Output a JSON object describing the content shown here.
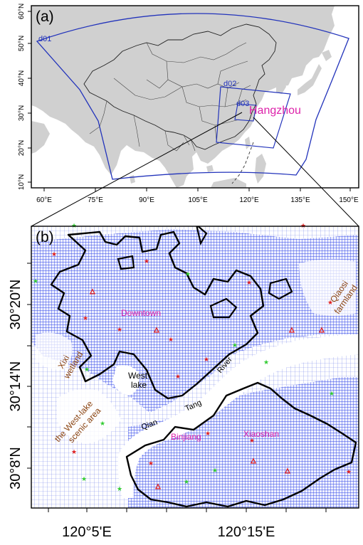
{
  "panel_a": {
    "label": "(a)",
    "domain_labels": [
      "d01",
      "d02",
      "d03"
    ],
    "city_label": "Hangzhou",
    "lat_ticks": [
      "60°N",
      "50°N",
      "40°N",
      "30°N",
      "20°N",
      "10°N"
    ],
    "lon_ticks": [
      "60°E",
      "75°E",
      "90°E",
      "105°E",
      "120°E",
      "135°E",
      "150°E"
    ]
  },
  "panel_b": {
    "label": "(b)",
    "place_labels": {
      "downtown": "Downtown",
      "binjiang": "Binjiang",
      "xiaoshan": "Xiaoshan",
      "west_lake_1": "West",
      "west_lake_2": "lake",
      "qiaosi_1": "Qiaosi",
      "qiaosi_2": "farmland",
      "xixi_1": "Xixi",
      "xixi_2": "wetland",
      "scenic_1": "the West-lake",
      "scenic_2": "scenic area",
      "river_1": "Qian",
      "river_2": "Tang",
      "river_3": "River"
    },
    "lat_ticks": [
      "30°20'N",
      "30°14'N",
      "30°8'N"
    ],
    "lon_ticks": [
      "120°5'E",
      "120°15'E"
    ]
  },
  "colors": {
    "land": "#d0d0d0",
    "domain_box": "#2233bb",
    "city_text": "#dd22aa",
    "urban": "#2a3fe0",
    "brown_text": "#8b4513",
    "marker_red": "#e02020",
    "marker_green": "#33cc33"
  }
}
